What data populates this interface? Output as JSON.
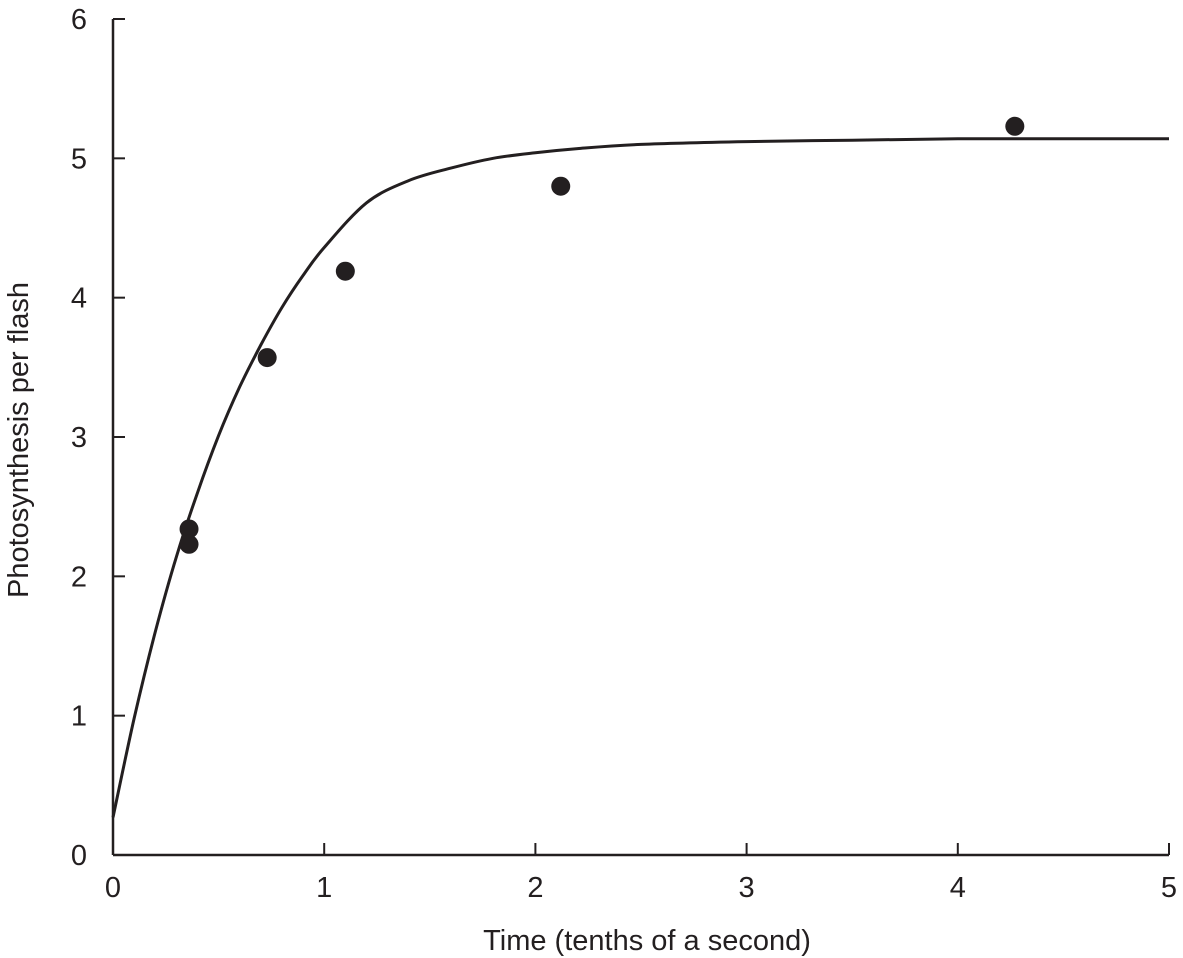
{
  "colors": {
    "ink": "#231f20",
    "background": "#ffffff"
  },
  "chart_data": {
    "type": "scatter",
    "title": "",
    "xlabel": "Time (tenths of a second)",
    "ylabel": "Photosynthesis per flash",
    "xlim": [
      0,
      5
    ],
    "ylim": [
      0,
      6
    ],
    "x_ticks": [
      0,
      1,
      2,
      3,
      4,
      5
    ],
    "y_ticks": [
      0,
      1,
      2,
      3,
      4,
      5,
      6
    ],
    "grid": false,
    "legend": "none",
    "points": [
      {
        "x": 0.36,
        "y": 2.34
      },
      {
        "x": 0.36,
        "y": 2.23
      },
      {
        "x": 0.73,
        "y": 3.57
      },
      {
        "x": 1.1,
        "y": 4.19
      },
      {
        "x": 2.12,
        "y": 4.8
      },
      {
        "x": 4.27,
        "y": 5.23
      }
    ],
    "fit_curve": {
      "type": "line",
      "x": [
        0,
        0.1,
        0.2,
        0.3,
        0.4,
        0.5,
        0.6,
        0.7,
        0.8,
        0.9,
        1.0,
        1.2,
        1.4,
        1.6,
        1.8,
        2.0,
        2.2,
        2.5,
        3.0,
        3.5,
        4.0,
        4.5,
        5.0
      ],
      "y": [
        0.27,
        0.98,
        1.6,
        2.14,
        2.6,
        3.01,
        3.36,
        3.66,
        3.93,
        4.16,
        4.36,
        4.68,
        4.84,
        4.93,
        5.0,
        5.04,
        5.07,
        5.1,
        5.12,
        5.13,
        5.14,
        5.14,
        5.14
      ]
    }
  }
}
